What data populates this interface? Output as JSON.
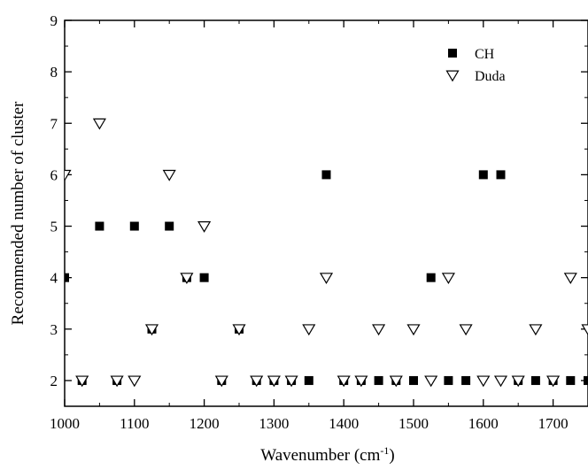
{
  "chart_data": {
    "type": "scatter",
    "title": "",
    "xlabel_main": "Wavenumber (cm",
    "xlabel_sup": "-1",
    "xlabel_end": ")",
    "ylabel": "Recommended number of cluster",
    "xlim": [
      1000,
      1750
    ],
    "ylim": [
      1.5,
      9
    ],
    "x_ticks": [
      1000,
      1100,
      1200,
      1300,
      1400,
      1500,
      1600,
      1700
    ],
    "x_tick_labels": [
      "1000",
      "1100",
      "1200",
      "1300",
      "1400",
      "1500",
      "1600",
      "1700"
    ],
    "y_ticks": [
      2,
      3,
      4,
      5,
      6,
      7,
      8,
      9
    ],
    "y_tick_labels": [
      "2",
      "3",
      "4",
      "5",
      "6",
      "7",
      "8",
      "9"
    ],
    "grid": false,
    "legend_position": "top-right",
    "series": [
      {
        "name": "CH",
        "marker": "filled-square",
        "color": "#000000",
        "points": [
          [
            1000,
            4
          ],
          [
            1025,
            2
          ],
          [
            1050,
            5
          ],
          [
            1075,
            2
          ],
          [
            1100,
            5
          ],
          [
            1125,
            3
          ],
          [
            1150,
            5
          ],
          [
            1175,
            4
          ],
          [
            1200,
            4
          ],
          [
            1225,
            2
          ],
          [
            1250,
            3
          ],
          [
            1275,
            2
          ],
          [
            1300,
            2
          ],
          [
            1325,
            2
          ],
          [
            1350,
            2
          ],
          [
            1375,
            6
          ],
          [
            1400,
            2
          ],
          [
            1425,
            2
          ],
          [
            1450,
            2
          ],
          [
            1475,
            2
          ],
          [
            1500,
            2
          ],
          [
            1525,
            4
          ],
          [
            1550,
            2
          ],
          [
            1575,
            2
          ],
          [
            1600,
            6
          ],
          [
            1625,
            6
          ],
          [
            1650,
            2
          ],
          [
            1675,
            2
          ],
          [
            1700,
            2
          ],
          [
            1725,
            2
          ],
          [
            1750,
            2
          ]
        ]
      },
      {
        "name": "Duda",
        "marker": "open-triangle-down",
        "color": "#000000",
        "points": [
          [
            1000,
            6
          ],
          [
            1025,
            2
          ],
          [
            1050,
            7
          ],
          [
            1075,
            2
          ],
          [
            1100,
            2
          ],
          [
            1125,
            3
          ],
          [
            1150,
            6
          ],
          [
            1175,
            4
          ],
          [
            1200,
            5
          ],
          [
            1225,
            2
          ],
          [
            1250,
            3
          ],
          [
            1275,
            2
          ],
          [
            1300,
            2
          ],
          [
            1325,
            2
          ],
          [
            1350,
            3
          ],
          [
            1375,
            4
          ],
          [
            1400,
            2
          ],
          [
            1425,
            2
          ],
          [
            1450,
            3
          ],
          [
            1475,
            2
          ],
          [
            1500,
            3
          ],
          [
            1525,
            2
          ],
          [
            1550,
            4
          ],
          [
            1575,
            3
          ],
          [
            1600,
            2
          ],
          [
            1625,
            2
          ],
          [
            1650,
            2
          ],
          [
            1675,
            3
          ],
          [
            1700,
            2
          ],
          [
            1725,
            4
          ],
          [
            1750,
            3
          ]
        ]
      }
    ]
  }
}
